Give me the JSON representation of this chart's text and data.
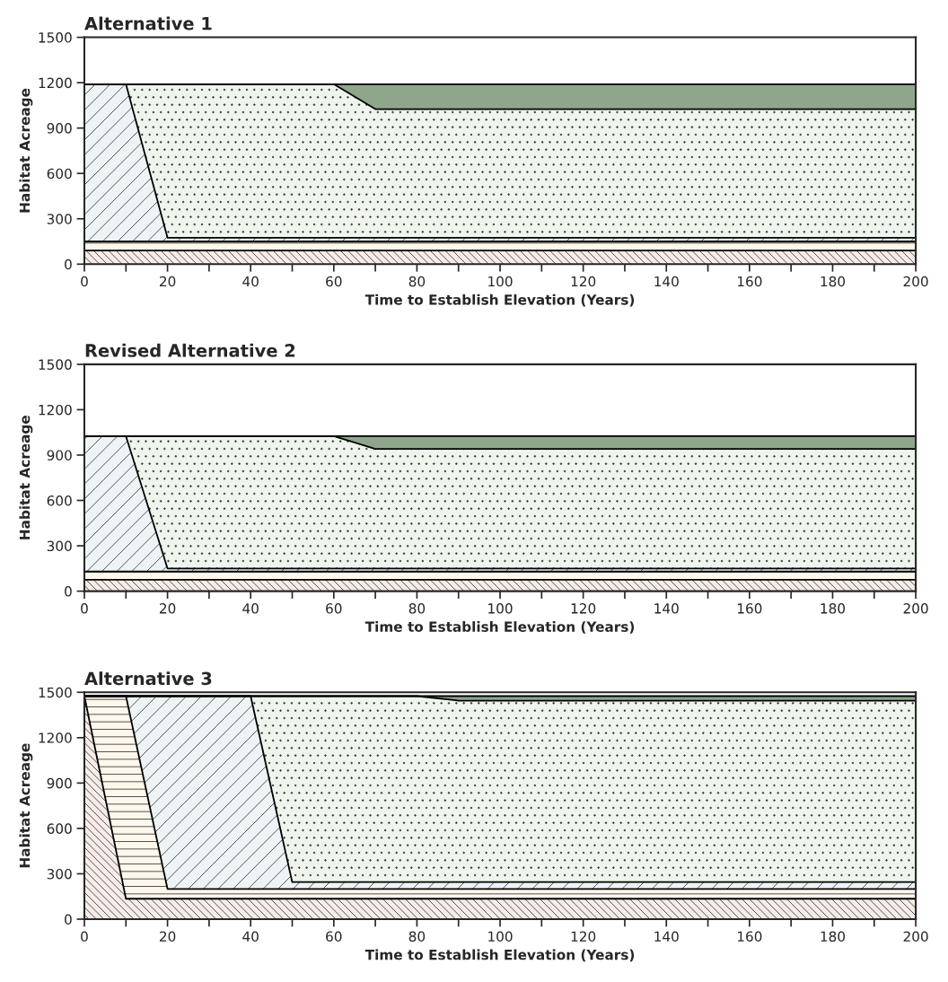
{
  "chart_data": [
    {
      "type": "area",
      "stacked": true,
      "title": "Alternative 1",
      "xlabel": "Time to Establish Elevation (Years)",
      "ylabel": "Habitat Acreage",
      "x": [
        0,
        10,
        20,
        60,
        70,
        200
      ],
      "series": [
        {
          "color": "#f6ece8",
          "values": [
            90,
            90,
            90,
            90,
            90,
            90
          ]
        },
        {
          "color": "#fdf7ec",
          "values": [
            60,
            60,
            60,
            60,
            60,
            60
          ]
        },
        {
          "color": "#eef4f5",
          "values": [
            1040,
            1040,
            25,
            25,
            25,
            25
          ]
        },
        {
          "color": "#eef5ec",
          "values": [
            0,
            0,
            1015,
            1015,
            850,
            850
          ]
        },
        {
          "color": "#8fa68c",
          "values": [
            0,
            0,
            0,
            0,
            165,
            165
          ]
        }
      ],
      "xlim": [
        0,
        200
      ],
      "ylim": [
        0,
        1500
      ],
      "xticks": [
        0,
        {
          "value": 10,
          "label": null
        },
        20,
        {
          "value": 30,
          "label": null
        },
        40,
        {
          "value": 50,
          "label": null
        },
        60,
        {
          "value": 70,
          "label": null
        },
        80,
        {
          "value": 90,
          "label": null
        },
        100,
        {
          "value": 110,
          "label": null
        },
        120,
        {
          "value": 130,
          "label": null
        },
        140,
        {
          "value": 150,
          "label": null
        },
        160,
        {
          "value": 170,
          "label": null
        },
        180,
        {
          "value": 190,
          "label": null
        },
        200
      ],
      "yticks": [
        0,
        300,
        600,
        900,
        1200,
        1500
      ],
      "grid": false,
      "legend": false
    },
    {
      "type": "area",
      "stacked": true,
      "title": "Revised Alternative 2",
      "xlabel": "Time to Establish Elevation (Years)",
      "ylabel": "Habitat Acreage",
      "x": [
        0,
        10,
        20,
        60,
        70,
        200
      ],
      "series": [
        {
          "color": "#f6ece8",
          "values": [
            75,
            75,
            75,
            75,
            75,
            75
          ]
        },
        {
          "color": "#fdf7ec",
          "values": [
            55,
            55,
            55,
            55,
            55,
            55
          ]
        },
        {
          "color": "#eef4f5",
          "values": [
            895,
            895,
            20,
            20,
            20,
            20
          ]
        },
        {
          "color": "#eef5ec",
          "values": [
            0,
            0,
            875,
            875,
            790,
            790
          ]
        },
        {
          "color": "#8fa68c",
          "values": [
            0,
            0,
            0,
            0,
            85,
            85
          ]
        }
      ],
      "xlim": [
        0,
        200
      ],
      "ylim": [
        0,
        1500
      ],
      "xticks": [
        0,
        {
          "value": 10,
          "label": null
        },
        20,
        {
          "value": 30,
          "label": null
        },
        40,
        {
          "value": 50,
          "label": null
        },
        60,
        {
          "value": 70,
          "label": null
        },
        80,
        {
          "value": 90,
          "label": null
        },
        100,
        {
          "value": 110,
          "label": null
        },
        120,
        {
          "value": 130,
          "label": null
        },
        140,
        {
          "value": 150,
          "label": null
        },
        160,
        {
          "value": 170,
          "label": null
        },
        180,
        {
          "value": 190,
          "label": null
        },
        200
      ],
      "yticks": [
        0,
        300,
        600,
        900,
        1200,
        1500
      ],
      "grid": false,
      "legend": false
    },
    {
      "type": "area",
      "stacked": true,
      "title": "Alternative 3",
      "xlabel": "Time to Establish Elevation (Years)",
      "ylabel": "Habitat Acreage",
      "x": [
        0,
        10,
        20,
        40,
        50,
        80,
        90,
        200
      ],
      "series": [
        {
          "color": "#f6ece8",
          "values": [
            1475,
            135,
            135,
            135,
            135,
            135,
            135,
            135
          ]
        },
        {
          "color": "#fdf7ec",
          "values": [
            0,
            1340,
            65,
            65,
            65,
            65,
            65,
            65
          ]
        },
        {
          "color": "#eef4f5",
          "values": [
            0,
            0,
            1275,
            1275,
            45,
            45,
            45,
            45
          ]
        },
        {
          "color": "#eef5ec",
          "values": [
            0,
            0,
            0,
            0,
            1230,
            1230,
            1200,
            1200
          ]
        },
        {
          "color": "#8fa68c",
          "values": [
            0,
            0,
            0,
            0,
            0,
            0,
            30,
            30
          ]
        }
      ],
      "xlim": [
        0,
        200
      ],
      "ylim": [
        0,
        1500
      ],
      "xticks": [
        0,
        {
          "value": 10,
          "label": null
        },
        20,
        {
          "value": 30,
          "label": null
        },
        40,
        {
          "value": 50,
          "label": null
        },
        60,
        {
          "value": 70,
          "label": null
        },
        80,
        {
          "value": 90,
          "label": null
        },
        100,
        {
          "value": 110,
          "label": null
        },
        120,
        {
          "value": 130,
          "label": null
        },
        140,
        {
          "value": 150,
          "label": null
        },
        160,
        {
          "value": 170,
          "label": null
        },
        180,
        {
          "value": 190,
          "label": null
        },
        200
      ],
      "yticks": [
        0,
        300,
        600,
        900,
        1200,
        1500
      ],
      "grid": false,
      "legend": false
    }
  ]
}
